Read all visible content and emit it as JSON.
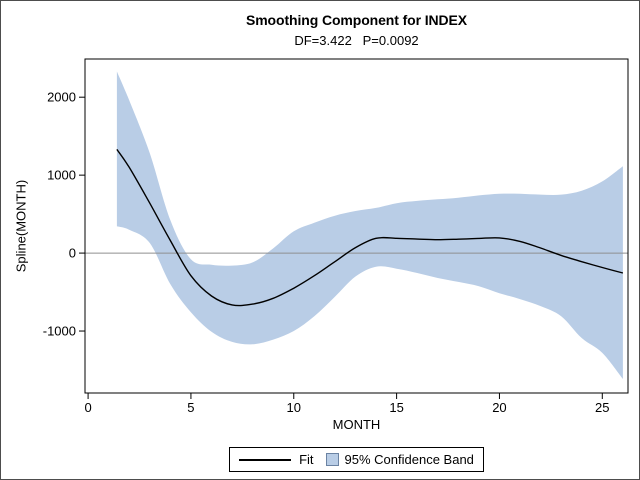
{
  "figure": {
    "title": "Smoothing Component for INDEX",
    "subtitle": "DF=3.422   P=0.0092"
  },
  "legend": {
    "fit_label": "Fit",
    "band_label": "95% Confidence Band"
  },
  "colors": {
    "band_fill": "#b9cde6",
    "fit_line": "#000000",
    "reference_line": "#8f8f8f",
    "plot_frame": "#000000",
    "tick": "#000000",
    "legend_swatch_border": "#6b83a3",
    "figure_border": "#4d4d4d",
    "background": "#ffffff"
  },
  "chart_data": {
    "type": "line",
    "title": "Smoothing Component for INDEX",
    "subtitle": "DF=3.422   P=0.0092",
    "stats": {
      "df": 3.422,
      "p": 0.0092
    },
    "xlabel": "MONTH",
    "ylabel": "Spline(MONTH)",
    "xlim": [
      -0.15,
      26.25
    ],
    "ylim": [
      -1795,
      2490
    ],
    "x_ticks": [
      0,
      5,
      10,
      15,
      20,
      25
    ],
    "y_ticks": [
      -1000,
      0,
      1000,
      2000
    ],
    "reference_line_y": 0,
    "grid": false,
    "legend_position": "bottom-center",
    "x": [
      1.4,
      2,
      3,
      4,
      5,
      6,
      7,
      8,
      9,
      10,
      11,
      12,
      13,
      14,
      15,
      16,
      17,
      18,
      19,
      20,
      21,
      22,
      23,
      24,
      25,
      26
    ],
    "series": [
      {
        "name": "Fit",
        "values": [
          1330,
          1100,
          640,
          160,
          -290,
          -550,
          -665,
          -655,
          -580,
          -450,
          -290,
          -110,
          70,
          190,
          190,
          180,
          172,
          178,
          188,
          195,
          150,
          65,
          -30,
          -110,
          -185,
          -255
        ]
      },
      {
        "name": "95% Confidence Band upper",
        "values": [
          2330,
          1960,
          1280,
          420,
          -80,
          -150,
          -160,
          -120,
          60,
          280,
          390,
          480,
          540,
          580,
          640,
          670,
          690,
          710,
          740,
          760,
          760,
          750,
          750,
          800,
          920,
          1115
        ]
      },
      {
        "name": "95% Confidence Band lower",
        "values": [
          345,
          300,
          130,
          -400,
          -760,
          -1010,
          -1140,
          -1170,
          -1110,
          -1000,
          -810,
          -560,
          -300,
          -175,
          -200,
          -255,
          -320,
          -370,
          -425,
          -515,
          -590,
          -680,
          -810,
          -1090,
          -1280,
          -1615
        ]
      }
    ]
  }
}
